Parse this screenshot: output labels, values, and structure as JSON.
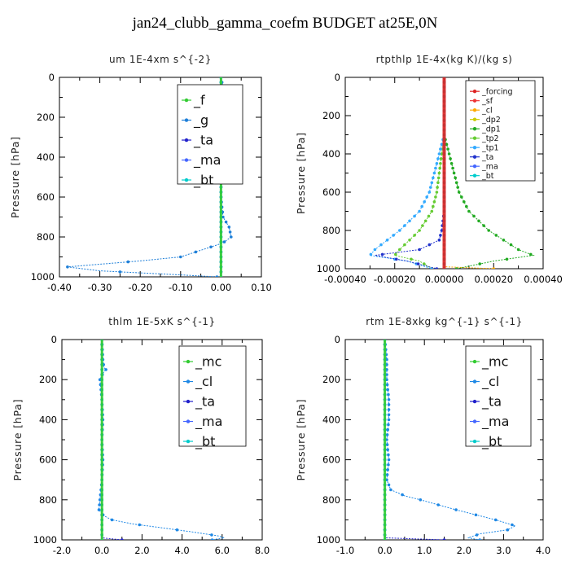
{
  "title": "jan24_clubb_gamma_coefm  BUDGET at25E,0N",
  "chart_data": [
    {
      "type": "line",
      "title": "um  1E-4xm s^{-2}",
      "ylabel": "Pressure [hPa]",
      "xlim": [
        -0.4,
        0.1
      ],
      "ylim": [
        1000,
        0
      ],
      "xticks": [
        -0.4,
        -0.3,
        -0.2,
        -0.1,
        0.0,
        0.1
      ],
      "xtick_labels": [
        "-0.40",
        "-0.30",
        "-0.20",
        "-0.10",
        "0.00",
        "0.10"
      ],
      "yticks": [
        0,
        200,
        400,
        600,
        800,
        1000
      ],
      "ytick_labels": [
        "0",
        "200",
        "400",
        "600",
        "800",
        "1000"
      ],
      "legend_position": "top-right",
      "series": [
        {
          "name": "_f",
          "color": "#33cc33",
          "pressure": [
            0,
            100,
            200,
            300,
            400,
            500,
            600,
            700,
            800,
            900,
            1000
          ],
          "values": [
            0,
            0,
            0,
            0,
            0,
            0,
            0,
            0,
            0,
            0,
            0
          ]
        },
        {
          "name": "_g",
          "color": "#1e7fd8",
          "pressure": [
            0,
            100,
            120,
            140,
            160,
            180,
            200,
            250,
            300,
            400,
            500,
            600,
            700,
            750,
            800,
            830,
            860,
            900,
            920,
            940,
            950,
            970,
            990,
            1000
          ],
          "values": [
            0,
            0.01,
            0.02,
            0.025,
            0.015,
            0.02,
            0.01,
            0.005,
            0,
            0,
            0,
            0,
            0.005,
            0.02,
            0.025,
            0.005,
            -0.04,
            -0.1,
            -0.2,
            -0.32,
            -0.38,
            -0.3,
            -0.1,
            -0.01
          ]
        },
        {
          "name": "_ta",
          "color": "#2222cc",
          "pressure": [
            0,
            500,
            1000
          ],
          "values": [
            0,
            0,
            0
          ]
        },
        {
          "name": "_ma",
          "color": "#4466ff",
          "pressure": [
            0,
            500,
            1000
          ],
          "values": [
            0,
            0,
            0
          ]
        },
        {
          "name": "_bt",
          "color": "#00cccc",
          "pressure": [
            0,
            500,
            1000
          ],
          "values": [
            0,
            0,
            0
          ]
        }
      ]
    },
    {
      "type": "line",
      "title": "rtpthlp  1E-4x(kg K)/(kg s)",
      "ylabel": "Pressure [hPa]",
      "xlim": [
        -0.0004,
        0.0004
      ],
      "ylim": [
        1000,
        0
      ],
      "xticks": [
        -0.0004,
        -0.0002,
        0.0,
        0.0002,
        0.0004
      ],
      "xtick_labels": [
        "-0.00040",
        "-0.00020",
        "0.00000",
        "0.00020",
        "0.00040"
      ],
      "yticks": [
        0,
        200,
        400,
        600,
        800,
        1000
      ],
      "ytick_labels": [
        "0",
        "200",
        "400",
        "600",
        "800",
        "1000"
      ],
      "legend_position": "top-right",
      "series": [
        {
          "name": "_forcing",
          "color": "#dd2222",
          "pressure": [
            0,
            500,
            1000
          ],
          "values": [
            0,
            0,
            0
          ]
        },
        {
          "name": "_sf",
          "color": "#ee3333",
          "pressure": [
            0,
            500,
            1000
          ],
          "values": [
            0,
            0,
            0
          ]
        },
        {
          "name": "_cl",
          "color": "#ffaa00",
          "pressure": [
            0,
            990,
            1000
          ],
          "values": [
            0,
            0,
            0.0002
          ]
        },
        {
          "name": "_dp2",
          "color": "#cccc00",
          "pressure": [
            0,
            500,
            1000
          ],
          "values": [
            0,
            0,
            0
          ]
        },
        {
          "name": "_dp1",
          "color": "#22aa22",
          "pressure": [
            0,
            300,
            400,
            500,
            600,
            700,
            800,
            900,
            930,
            960,
            1000
          ],
          "values": [
            0,
            0,
            2e-05,
            4e-05,
            6e-05,
            0.0001,
            0.00018,
            0.0003,
            0.00036,
            0.0002,
            5e-05
          ]
        },
        {
          "name": "_tp2",
          "color": "#66cc33",
          "pressure": [
            0,
            300,
            400,
            500,
            600,
            700,
            800,
            900,
            930,
            960,
            1000
          ],
          "values": [
            0,
            0,
            -1e-05,
            -2e-05,
            -3e-05,
            -5e-05,
            -0.0001,
            -0.00018,
            -0.0002,
            -0.0001,
            -5e-05
          ]
        },
        {
          "name": "_tp1",
          "color": "#33aaff",
          "pressure": [
            0,
            300,
            400,
            500,
            600,
            700,
            800,
            900,
            930,
            960,
            1000
          ],
          "values": [
            0,
            0,
            -2e-05,
            -4e-05,
            -6e-05,
            -0.0001,
            -0.00018,
            -0.00028,
            -0.0003,
            -0.00015,
            -5e-05
          ]
        },
        {
          "name": "_ta",
          "color": "#2233cc",
          "pressure": [
            0,
            700,
            800,
            850,
            900,
            930,
            960,
            1000
          ],
          "values": [
            0,
            0,
            -1e-05,
            -2e-05,
            -0.0001,
            -0.00028,
            -0.00015,
            -3e-05
          ]
        },
        {
          "name": "_ma",
          "color": "#4466ff",
          "pressure": [
            0,
            500,
            1000
          ],
          "values": [
            0,
            0,
            0
          ]
        },
        {
          "name": "_bt",
          "color": "#00cccc",
          "pressure": [
            0,
            500,
            1000
          ],
          "values": [
            0,
            0,
            0
          ]
        }
      ]
    },
    {
      "type": "line",
      "title": "thlm  1E-5xK s^{-1}",
      "ylabel": "Pressure [hPa]",
      "xlim": [
        -2.0,
        8.0
      ],
      "ylim": [
        1000,
        0
      ],
      "xticks": [
        -2,
        0,
        2,
        4,
        6,
        8
      ],
      "xtick_labels": [
        "-2.0",
        "0.0",
        "2.0",
        "4.0",
        "6.0",
        "8.0"
      ],
      "yticks": [
        0,
        200,
        400,
        600,
        800,
        1000
      ],
      "ytick_labels": [
        "0",
        "200",
        "400",
        "600",
        "800",
        "1000"
      ],
      "legend_position": "top-right",
      "series": [
        {
          "name": "_mc",
          "color": "#33cc33",
          "pressure": [
            0,
            500,
            1000
          ],
          "values": [
            0,
            0,
            0
          ]
        },
        {
          "name": "_cl",
          "color": "#1e88e5",
          "pressure": [
            0,
            100,
            140,
            150,
            160,
            200,
            300,
            400,
            500,
            600,
            700,
            800,
            850,
            880,
            900,
            920,
            940,
            960,
            980,
            990,
            1000
          ],
          "values": [
            0,
            0.05,
            0.1,
            0.2,
            0.1,
            -0.1,
            0,
            0.05,
            0,
            0.05,
            0,
            -0.1,
            -0.15,
            0.1,
            0.5,
            1.5,
            3.0,
            4.5,
            5.8,
            6.1,
            5.5
          ]
        },
        {
          "name": "_ta",
          "color": "#2222cc",
          "pressure": [
            0,
            990,
            1000
          ],
          "values": [
            0,
            0,
            1.0
          ]
        },
        {
          "name": "_ma",
          "color": "#4466ff",
          "pressure": [
            0,
            500,
            1000
          ],
          "values": [
            0,
            0,
            0
          ]
        },
        {
          "name": "_bt",
          "color": "#00cccc",
          "pressure": [
            0,
            500,
            1000
          ],
          "values": [
            0,
            0,
            0
          ]
        }
      ]
    },
    {
      "type": "line",
      "title": "rtm  1E-8xkg kg^{-1} s^{-1}",
      "ylabel": "Pressure [hPa]",
      "xlim": [
        -1.0,
        4.0
      ],
      "ylim": [
        1000,
        0
      ],
      "xticks": [
        -1,
        0,
        1,
        2,
        3,
        4
      ],
      "xtick_labels": [
        "-1.0",
        "0.0",
        "1.0",
        "2.0",
        "3.0",
        "4.0"
      ],
      "yticks": [
        0,
        200,
        400,
        600,
        800,
        1000
      ],
      "ytick_labels": [
        "0",
        "200",
        "400",
        "600",
        "800",
        "1000"
      ],
      "legend_position": "top-right",
      "series": [
        {
          "name": "_mc",
          "color": "#33cc33",
          "pressure": [
            0,
            500,
            1000
          ],
          "values": [
            0,
            0,
            0
          ]
        },
        {
          "name": "_cl",
          "color": "#1e88e5",
          "pressure": [
            0,
            100,
            200,
            300,
            400,
            500,
            600,
            700,
            750,
            780,
            800,
            850,
            900,
            930,
            950,
            970,
            990,
            1000
          ],
          "values": [
            0,
            0.05,
            0.05,
            0.1,
            0.1,
            0.05,
            0.1,
            0.05,
            0.15,
            0.5,
            0.9,
            1.8,
            2.8,
            3.3,
            3.1,
            2.4,
            2.1,
            2.4
          ]
        },
        {
          "name": "_ta",
          "color": "#2222cc",
          "pressure": [
            0,
            990,
            1000
          ],
          "values": [
            0,
            0,
            1.5
          ]
        },
        {
          "name": "_ma",
          "color": "#4466ff",
          "pressure": [
            0,
            500,
            1000
          ],
          "values": [
            0,
            0,
            0
          ]
        },
        {
          "name": "_bt",
          "color": "#00cccc",
          "pressure": [
            0,
            500,
            1000
          ],
          "values": [
            0,
            0,
            0
          ]
        }
      ]
    }
  ]
}
